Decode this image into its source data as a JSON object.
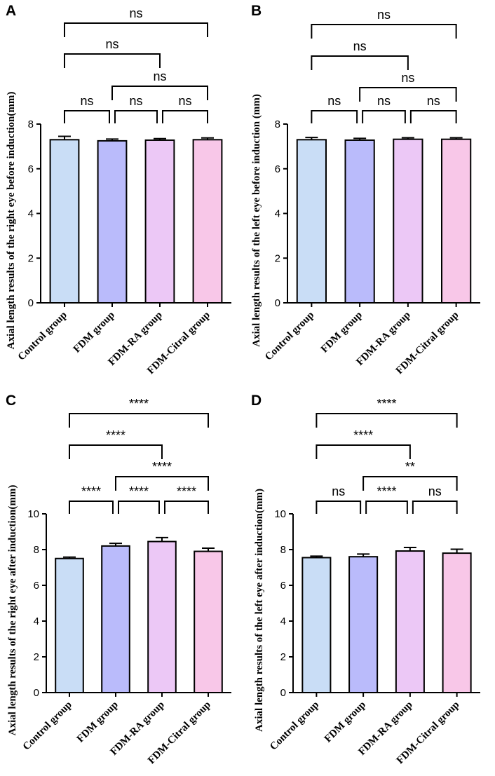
{
  "chart_data": [
    {
      "type": "bar",
      "panel": "A",
      "ylabel": "Axial length results of the right eye before induction(mm)",
      "categories": [
        "Control group",
        "FDM group",
        "FDM-RA group",
        "FDM-Citral group"
      ],
      "values": [
        7.3,
        7.25,
        7.28,
        7.3
      ],
      "errors": [
        0.15,
        0.08,
        0.07,
        0.08
      ],
      "ylim": [
        0,
        8
      ],
      "yticks": [
        "0",
        "2",
        "4",
        "6",
        "8"
      ],
      "colors": [
        "#c9ddf6",
        "#babbfb",
        "#ecc8f6",
        "#f8c7e8"
      ],
      "comparisons": [
        {
          "from": 0,
          "to": 1,
          "label": "ns"
        },
        {
          "from": 1,
          "to": 2,
          "label": "ns"
        },
        {
          "from": 2,
          "to": 3,
          "label": "ns"
        },
        {
          "from": 0,
          "to": 2,
          "label": "ns"
        },
        {
          "from": 1,
          "to": 3,
          "label": "ns"
        },
        {
          "from": 0,
          "to": 3,
          "label": "ns"
        }
      ]
    },
    {
      "type": "bar",
      "panel": "B",
      "ylabel": "Axial length results of the left eye before induction (mm)",
      "categories": [
        "Control group",
        "FDM group",
        "FDM-RA group",
        "FDM-Citral group"
      ],
      "values": [
        7.3,
        7.28,
        7.32,
        7.32
      ],
      "errors": [
        0.1,
        0.08,
        0.07,
        0.07
      ],
      "ylim": [
        0,
        8
      ],
      "yticks": [
        "0",
        "2",
        "4",
        "6",
        "8"
      ],
      "colors": [
        "#c9ddf6",
        "#babbfb",
        "#ecc8f6",
        "#f8c7e8"
      ],
      "comparisons": [
        {
          "from": 0,
          "to": 1,
          "label": "ns"
        },
        {
          "from": 1,
          "to": 2,
          "label": "ns"
        },
        {
          "from": 2,
          "to": 3,
          "label": "ns"
        },
        {
          "from": 0,
          "to": 2,
          "label": "ns"
        },
        {
          "from": 1,
          "to": 3,
          "label": "ns"
        },
        {
          "from": 0,
          "to": 3,
          "label": "ns"
        }
      ]
    },
    {
      "type": "bar",
      "panel": "C",
      "ylabel": "Axial length results of the right eye after induction(mm)",
      "categories": [
        "Control group",
        "FDM group",
        "FDM-RA group",
        "FDM-Citral group"
      ],
      "values": [
        7.5,
        8.2,
        8.45,
        7.9
      ],
      "errors": [
        0.08,
        0.15,
        0.22,
        0.18
      ],
      "ylim": [
        0,
        10
      ],
      "yticks": [
        "0",
        "2",
        "4",
        "6",
        "8",
        "10"
      ],
      "colors": [
        "#c9ddf6",
        "#babbfb",
        "#ecc8f6",
        "#f8c7e8"
      ],
      "comparisons": [
        {
          "from": 0,
          "to": 1,
          "label": "****"
        },
        {
          "from": 1,
          "to": 2,
          "label": "****"
        },
        {
          "from": 2,
          "to": 3,
          "label": "****"
        },
        {
          "from": 0,
          "to": 2,
          "label": "****"
        },
        {
          "from": 1,
          "to": 3,
          "label": "****"
        },
        {
          "from": 0,
          "to": 3,
          "label": "****"
        }
      ]
    },
    {
      "type": "bar",
      "panel": "D",
      "ylabel": "Axial length results of the left eye after induction(mm)",
      "categories": [
        "Control group",
        "FDM group",
        "FDM-RA group",
        "FDM-Citral group"
      ],
      "values": [
        7.55,
        7.6,
        7.92,
        7.8
      ],
      "errors": [
        0.08,
        0.15,
        0.2,
        0.22
      ],
      "ylim": [
        0,
        10
      ],
      "yticks": [
        "0",
        "2",
        "4",
        "6",
        "8",
        "10"
      ],
      "colors": [
        "#c9ddf6",
        "#babbfb",
        "#ecc8f6",
        "#f8c7e8"
      ],
      "comparisons": [
        {
          "from": 0,
          "to": 1,
          "label": "ns"
        },
        {
          "from": 1,
          "to": 2,
          "label": "****"
        },
        {
          "from": 2,
          "to": 3,
          "label": "ns"
        },
        {
          "from": 0,
          "to": 2,
          "label": "****"
        },
        {
          "from": 1,
          "to": 3,
          "label": "**"
        },
        {
          "from": 0,
          "to": 3,
          "label": "****"
        }
      ]
    }
  ]
}
